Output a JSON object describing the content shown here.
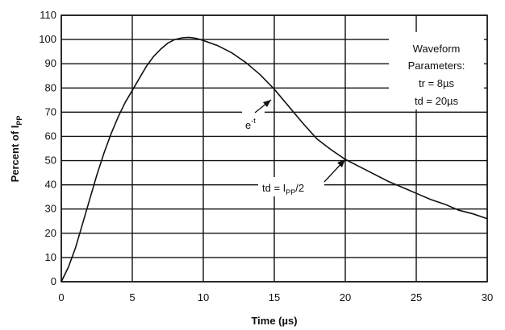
{
  "chart_data": {
    "type": "line",
    "title": "",
    "xlabel": "Time (µs)",
    "ylabel": "Percent of I",
    "ylabel_sub": "PP",
    "xlim": [
      0,
      30
    ],
    "ylim": [
      0,
      110
    ],
    "x_ticks": [
      "0",
      "5",
      "10",
      "15",
      "20",
      "25",
      "30"
    ],
    "y_ticks": [
      "0",
      "10",
      "20",
      "30",
      "40",
      "50",
      "60",
      "70",
      "80",
      "90",
      "100",
      "110"
    ],
    "grid": true,
    "series": [
      {
        "x": [
          0,
          0.5,
          1,
          1.5,
          2,
          2.5,
          3,
          3.5,
          4,
          4.5,
          5,
          5.5,
          6,
          6.5,
          7,
          7.5,
          8,
          8.5,
          9,
          9.5,
          10,
          11,
          12,
          13,
          14,
          15,
          16,
          17,
          18,
          19,
          20,
          21,
          22,
          23,
          24,
          25,
          26,
          27,
          28,
          29,
          30
        ],
        "y": [
          0,
          6,
          14,
          24,
          34,
          44,
          53,
          61,
          68,
          74,
          79,
          84,
          89,
          93,
          96,
          98.5,
          100,
          100.7,
          100.9,
          100.5,
          99.6,
          97.5,
          94.5,
          90.5,
          85.5,
          79.5,
          72.5,
          65.5,
          59,
          54.5,
          50.5,
          47.5,
          44.5,
          41.5,
          39,
          36.5,
          34,
          32,
          29.5,
          28,
          26
        ]
      }
    ],
    "annotations": {
      "legend_line1": "Waveform",
      "legend_line2": "Parameters:",
      "legend_tr": "tr = 8µs",
      "legend_td": "td = 20µs",
      "decay_label": "e",
      "decay_sup": "-t",
      "td_label": "td = I",
      "td_sub": "PP",
      "td_suffix": "/2"
    }
  }
}
